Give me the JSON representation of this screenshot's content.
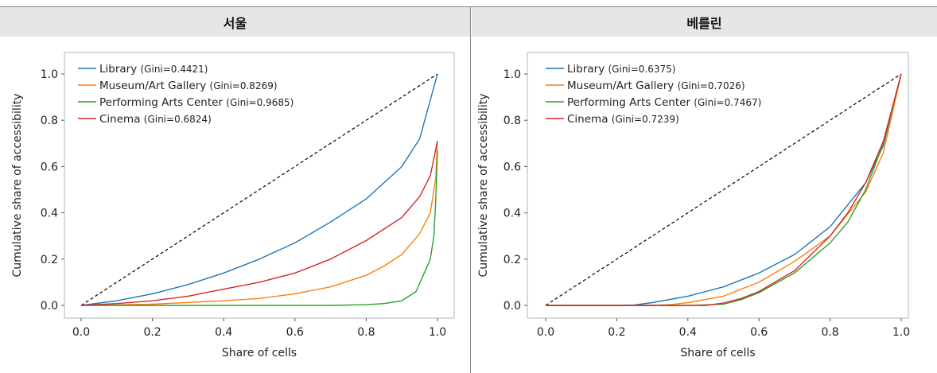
{
  "panels": [
    {
      "title": "서울"
    },
    {
      "title": "베를린"
    }
  ],
  "chart_data": [
    {
      "type": "line",
      "title": "서울",
      "xlabel": "Share of cells",
      "ylabel": "Cumulative share of accessibility",
      "xlim": [
        0,
        1
      ],
      "ylim": [
        0,
        1
      ],
      "xticks": [
        "0.0",
        "0.2",
        "0.4",
        "0.6",
        "0.8",
        "1.0"
      ],
      "yticks": [
        "0.0",
        "0.2",
        "0.4",
        "0.6",
        "0.8",
        "1.0"
      ],
      "grid": false,
      "legend_position": "top-left",
      "equality_line": {
        "x": [
          0,
          1
        ],
        "y": [
          0,
          1
        ],
        "style": "dashed",
        "color": "#000000"
      },
      "series": [
        {
          "name": "Library",
          "gini_label": "(Gini=0.4421)",
          "color": "#1f77b4",
          "x": [
            0,
            0.1,
            0.2,
            0.3,
            0.4,
            0.5,
            0.6,
            0.7,
            0.8,
            0.9,
            0.95,
            1.0
          ],
          "y": [
            0,
            0.02,
            0.05,
            0.09,
            0.14,
            0.2,
            0.27,
            0.36,
            0.46,
            0.6,
            0.72,
            1.0
          ]
        },
        {
          "name": "Museum/Art Gallery",
          "gini_label": "(Gini=0.8269)",
          "color": "#ff7f0e",
          "x": [
            0,
            0.2,
            0.4,
            0.5,
            0.6,
            0.7,
            0.8,
            0.85,
            0.9,
            0.95,
            0.98,
            0.995,
            1.0
          ],
          "y": [
            0,
            0.005,
            0.02,
            0.03,
            0.05,
            0.08,
            0.13,
            0.17,
            0.22,
            0.31,
            0.4,
            0.55,
            0.71
          ]
        },
        {
          "name": "Performing Arts Center",
          "gini_label": "(Gini=0.9685)",
          "color": "#2ca02c",
          "x": [
            0,
            0.5,
            0.7,
            0.8,
            0.85,
            0.9,
            0.94,
            0.96,
            0.98,
            0.99,
            0.995,
            1.0
          ],
          "y": [
            0,
            0,
            0,
            0.003,
            0.008,
            0.02,
            0.06,
            0.13,
            0.2,
            0.3,
            0.45,
            0.67
          ]
        },
        {
          "name": "Cinema",
          "gini_label": "(Gini=0.6824)",
          "color": "#d62728",
          "x": [
            0,
            0.1,
            0.2,
            0.3,
            0.4,
            0.5,
            0.6,
            0.7,
            0.8,
            0.9,
            0.95,
            0.98,
            1.0
          ],
          "y": [
            0,
            0.008,
            0.02,
            0.04,
            0.07,
            0.1,
            0.14,
            0.2,
            0.28,
            0.38,
            0.47,
            0.56,
            0.71
          ]
        }
      ]
    },
    {
      "type": "line",
      "title": "베를린",
      "xlabel": "Share of cells",
      "ylabel": "Cumulative share of accessibility",
      "xlim": [
        0,
        1
      ],
      "ylim": [
        0,
        1
      ],
      "xticks": [
        "0.0",
        "0.2",
        "0.4",
        "0.6",
        "0.8",
        "1.0"
      ],
      "yticks": [
        "0.0",
        "0.2",
        "0.4",
        "0.6",
        "0.8",
        "1.0"
      ],
      "grid": false,
      "legend_position": "top-left",
      "equality_line": {
        "x": [
          0,
          1
        ],
        "y": [
          0,
          1
        ],
        "style": "dashed",
        "color": "#000000"
      },
      "series": [
        {
          "name": "Library",
          "gini_label": "(Gini=0.6375)",
          "color": "#1f77b4",
          "x": [
            0,
            0.2,
            0.25,
            0.3,
            0.4,
            0.5,
            0.6,
            0.7,
            0.8,
            0.9,
            0.95,
            1.0
          ],
          "y": [
            0,
            0,
            0.002,
            0.012,
            0.04,
            0.08,
            0.14,
            0.22,
            0.34,
            0.53,
            0.69,
            1.0
          ]
        },
        {
          "name": "Museum/Art Gallery",
          "gini_label": "(Gini=0.7026)",
          "color": "#ff7f0e",
          "x": [
            0,
            0.3,
            0.35,
            0.4,
            0.5,
            0.6,
            0.7,
            0.8,
            0.9,
            0.95,
            1.0
          ],
          "y": [
            0,
            0,
            0.003,
            0.012,
            0.04,
            0.1,
            0.19,
            0.3,
            0.49,
            0.66,
            1.0
          ]
        },
        {
          "name": "Performing Arts Center",
          "gini_label": "(Gini=0.7467)",
          "color": "#2ca02c",
          "x": [
            0,
            0.4,
            0.5,
            0.55,
            0.6,
            0.7,
            0.8,
            0.85,
            0.9,
            0.95,
            1.0
          ],
          "y": [
            0,
            0,
            0.005,
            0.025,
            0.055,
            0.14,
            0.27,
            0.36,
            0.5,
            0.7,
            1.0
          ]
        },
        {
          "name": "Cinema",
          "gini_label": "(Gini=0.7239)",
          "color": "#d62728",
          "x": [
            0,
            0.45,
            0.5,
            0.55,
            0.6,
            0.7,
            0.8,
            0.85,
            0.9,
            0.95,
            1.0
          ],
          "y": [
            0,
            0,
            0.01,
            0.03,
            0.06,
            0.15,
            0.3,
            0.4,
            0.53,
            0.71,
            1.0
          ]
        }
      ]
    }
  ]
}
